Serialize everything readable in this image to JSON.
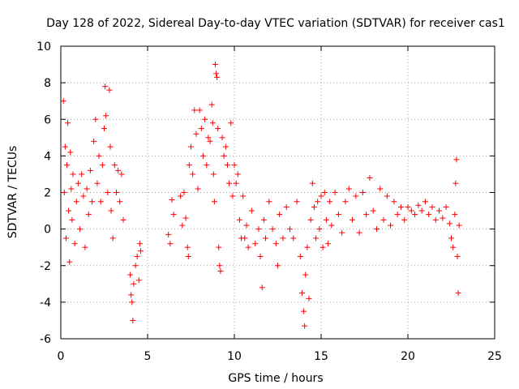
{
  "chart_data": {
    "type": "scatter",
    "title": "Day 128 of 2022, Sidereal Day-to-day VTEC variation (SDTVAR) for receiver cas1",
    "xlabel": "GPS time / hours",
    "ylabel": "SDTVAR / TECUs",
    "xlim": [
      0,
      25
    ],
    "ylim": [
      -6,
      10
    ],
    "xticks": [
      "0",
      "5",
      "10",
      "15",
      "20",
      "25"
    ],
    "yticks": [
      "-6",
      "-4",
      "-2",
      "0",
      "2",
      "4",
      "6",
      "8",
      "10"
    ],
    "grid": true,
    "marker": "+",
    "series": [
      {
        "name": "SDTVAR",
        "color": "#ff0000",
        "points": [
          [
            0.15,
            7.0
          ],
          [
            0.2,
            2.0
          ],
          [
            0.25,
            4.5
          ],
          [
            0.3,
            -0.5
          ],
          [
            0.35,
            3.5
          ],
          [
            0.4,
            5.8
          ],
          [
            0.45,
            1.0
          ],
          [
            0.5,
            -1.8
          ],
          [
            0.55,
            4.2
          ],
          [
            0.6,
            2.2
          ],
          [
            0.65,
            0.5
          ],
          [
            0.7,
            3.0
          ],
          [
            0.8,
            -0.8
          ],
          [
            0.9,
            1.5
          ],
          [
            1.0,
            2.5
          ],
          [
            1.1,
            0.0
          ],
          [
            1.2,
            3.0
          ],
          [
            1.3,
            1.8
          ],
          [
            1.4,
            -1.0
          ],
          [
            1.5,
            2.2
          ],
          [
            1.6,
            0.8
          ],
          [
            1.7,
            3.2
          ],
          [
            1.8,
            1.5
          ],
          [
            1.9,
            4.8
          ],
          [
            2.0,
            6.0
          ],
          [
            2.1,
            2.5
          ],
          [
            2.2,
            4.0
          ],
          [
            2.3,
            1.5
          ],
          [
            2.4,
            3.5
          ],
          [
            2.5,
            5.5
          ],
          [
            2.55,
            7.8
          ],
          [
            2.6,
            6.2
          ],
          [
            2.7,
            2.0
          ],
          [
            2.8,
            7.6
          ],
          [
            2.85,
            4.5
          ],
          [
            2.9,
            1.0
          ],
          [
            3.0,
            -0.5
          ],
          [
            3.1,
            3.5
          ],
          [
            3.2,
            2.0
          ],
          [
            3.3,
            3.2
          ],
          [
            3.4,
            1.5
          ],
          [
            3.5,
            3.0
          ],
          [
            3.6,
            0.5
          ],
          [
            4.0,
            -2.5
          ],
          [
            4.05,
            -3.6
          ],
          [
            4.1,
            -4.0
          ],
          [
            4.15,
            -5.0
          ],
          [
            4.2,
            -3.0
          ],
          [
            4.3,
            -2.0
          ],
          [
            4.4,
            -1.5
          ],
          [
            4.5,
            -2.8
          ],
          [
            4.55,
            -0.8
          ],
          [
            4.6,
            -1.2
          ],
          [
            6.2,
            -0.3
          ],
          [
            6.3,
            -0.8
          ],
          [
            6.4,
            1.6
          ],
          [
            6.5,
            0.8
          ],
          [
            6.9,
            1.8
          ],
          [
            7.0,
            0.2
          ],
          [
            7.1,
            2.0
          ],
          [
            7.2,
            0.6
          ],
          [
            7.3,
            -1.0
          ],
          [
            7.35,
            -1.5
          ],
          [
            7.4,
            3.5
          ],
          [
            7.5,
            4.5
          ],
          [
            7.6,
            3.0
          ],
          [
            7.7,
            6.5
          ],
          [
            7.8,
            5.2
          ],
          [
            7.9,
            2.2
          ],
          [
            8.0,
            6.5
          ],
          [
            8.1,
            5.5
          ],
          [
            8.2,
            4.0
          ],
          [
            8.3,
            6.0
          ],
          [
            8.4,
            3.5
          ],
          [
            8.5,
            5.0
          ],
          [
            8.6,
            4.8
          ],
          [
            8.7,
            6.8
          ],
          [
            8.75,
            5.8
          ],
          [
            8.8,
            3.0
          ],
          [
            8.85,
            1.5
          ],
          [
            8.9,
            9.0
          ],
          [
            8.95,
            8.5
          ],
          [
            9.0,
            8.3
          ],
          [
            9.05,
            5.5
          ],
          [
            9.1,
            -1.0
          ],
          [
            9.15,
            -2.0
          ],
          [
            9.2,
            -2.3
          ],
          [
            9.3,
            5.0
          ],
          [
            9.4,
            4.0
          ],
          [
            9.5,
            4.5
          ],
          [
            9.6,
            3.5
          ],
          [
            9.7,
            2.5
          ],
          [
            9.8,
            5.8
          ],
          [
            9.9,
            1.8
          ],
          [
            10.0,
            3.5
          ],
          [
            10.1,
            2.5
          ],
          [
            10.2,
            3.0
          ],
          [
            10.3,
            0.5
          ],
          [
            10.4,
            -0.5
          ],
          [
            10.5,
            1.8
          ],
          [
            10.6,
            -0.5
          ],
          [
            10.7,
            0.2
          ],
          [
            10.8,
            -1.0
          ],
          [
            11.0,
            1.0
          ],
          [
            11.2,
            -0.8
          ],
          [
            11.4,
            0.0
          ],
          [
            11.5,
            -1.5
          ],
          [
            11.6,
            -3.2
          ],
          [
            11.7,
            0.5
          ],
          [
            11.8,
            -0.5
          ],
          [
            12.0,
            1.5
          ],
          [
            12.2,
            0.0
          ],
          [
            12.4,
            -0.8
          ],
          [
            12.5,
            -2.0
          ],
          [
            12.6,
            0.8
          ],
          [
            12.8,
            -0.5
          ],
          [
            13.0,
            1.2
          ],
          [
            13.2,
            0.0
          ],
          [
            13.4,
            -0.5
          ],
          [
            13.6,
            1.5
          ],
          [
            13.8,
            -1.5
          ],
          [
            13.9,
            -3.5
          ],
          [
            14.0,
            -4.5
          ],
          [
            14.05,
            -5.3
          ],
          [
            14.1,
            -2.5
          ],
          [
            14.2,
            -1.0
          ],
          [
            14.3,
            -3.8
          ],
          [
            14.4,
            0.5
          ],
          [
            14.5,
            2.5
          ],
          [
            14.6,
            1.2
          ],
          [
            14.7,
            -0.5
          ],
          [
            14.8,
            1.5
          ],
          [
            14.9,
            0.0
          ],
          [
            15.0,
            1.8
          ],
          [
            15.1,
            -1.0
          ],
          [
            15.2,
            2.0
          ],
          [
            15.3,
            0.5
          ],
          [
            15.4,
            -0.8
          ],
          [
            15.5,
            1.5
          ],
          [
            15.6,
            0.2
          ],
          [
            15.8,
            2.0
          ],
          [
            16.0,
            0.8
          ],
          [
            16.2,
            -0.2
          ],
          [
            16.4,
            1.5
          ],
          [
            16.6,
            2.2
          ],
          [
            16.8,
            0.5
          ],
          [
            17.0,
            1.8
          ],
          [
            17.2,
            -0.2
          ],
          [
            17.4,
            2.0
          ],
          [
            17.6,
            0.8
          ],
          [
            17.8,
            2.8
          ],
          [
            18.0,
            1.0
          ],
          [
            18.2,
            0.0
          ],
          [
            18.4,
            2.2
          ],
          [
            18.6,
            0.5
          ],
          [
            18.8,
            1.8
          ],
          [
            19.0,
            0.2
          ],
          [
            19.2,
            1.5
          ],
          [
            19.4,
            0.8
          ],
          [
            19.6,
            1.2
          ],
          [
            19.8,
            0.5
          ],
          [
            20.0,
            1.2
          ],
          [
            20.2,
            1.0
          ],
          [
            20.4,
            0.8
          ],
          [
            20.6,
            1.3
          ],
          [
            20.8,
            1.0
          ],
          [
            21.0,
            1.5
          ],
          [
            21.2,
            0.8
          ],
          [
            21.4,
            1.2
          ],
          [
            21.6,
            0.5
          ],
          [
            21.8,
            1.0
          ],
          [
            22.0,
            0.6
          ],
          [
            22.2,
            1.2
          ],
          [
            22.4,
            0.3
          ],
          [
            22.5,
            -0.5
          ],
          [
            22.6,
            -1.0
          ],
          [
            22.7,
            0.8
          ],
          [
            22.75,
            2.5
          ],
          [
            22.8,
            3.8
          ],
          [
            22.85,
            -1.5
          ],
          [
            22.9,
            -3.5
          ],
          [
            22.95,
            0.2
          ]
        ]
      }
    ]
  }
}
